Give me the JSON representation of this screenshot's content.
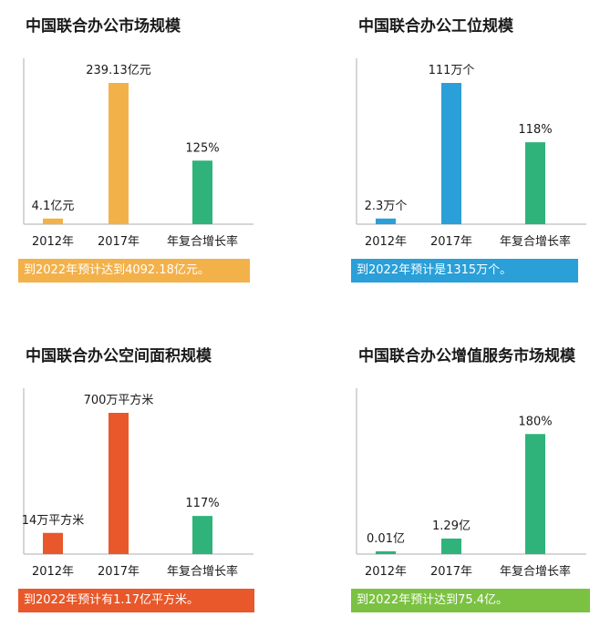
{
  "chart_data": [
    {
      "type": "bar",
      "title": "中国联合办公市场规模",
      "categories": [
        "2012年",
        "2017年",
        "年复合增长率"
      ],
      "values": [
        4.1,
        239.13,
        125
      ],
      "data_labels": [
        "4.1亿元",
        "239.13亿元",
        "125%"
      ],
      "bar_heights_relative": [
        0.04,
        1.0,
        0.45
      ],
      "colors": [
        "#f3b14a",
        "#f3b14a",
        "#2fb37a"
      ],
      "note": "到2022年预计达到4092.18亿元。",
      "note_color": "#f3b14a",
      "grid": false
    },
    {
      "type": "bar",
      "title": "中国联合办公工位规模",
      "categories": [
        "2012年",
        "2017年",
        "年复合增长率"
      ],
      "values": [
        2.3,
        111,
        118
      ],
      "data_labels": [
        "2.3万个",
        "111万个",
        "118%"
      ],
      "bar_heights_relative": [
        0.04,
        1.0,
        0.58
      ],
      "colors": [
        "#2a9fd8",
        "#2a9fd8",
        "#2fb37a"
      ],
      "note": "到2022年预计是1315万个。",
      "note_color": "#2a9fd8",
      "grid": false
    },
    {
      "type": "bar",
      "title": "中国联合办公空间面积规模",
      "categories": [
        "2012年",
        "2017年",
        "年复合增长率"
      ],
      "values": [
        14,
        700,
        117
      ],
      "data_labels": [
        "14万平方米",
        "700万平方米",
        "117%"
      ],
      "bar_heights_relative": [
        0.15,
        1.0,
        0.27
      ],
      "colors": [
        "#e8582a",
        "#e8582a",
        "#2fb37a"
      ],
      "note": "到2022年预计有1.17亿平方米。",
      "note_color": "#e8582a",
      "grid": false
    },
    {
      "type": "bar",
      "title": "中国联合办公增值服务市场规模",
      "categories": [
        "2012年",
        "2017年",
        "年复合增长率"
      ],
      "values": [
        0.01,
        1.29,
        180
      ],
      "data_labels": [
        "0.01亿",
        "1.29亿",
        "180%"
      ],
      "bar_heights_relative": [
        0.02,
        0.11,
        0.85
      ],
      "colors": [
        "#2fb37a",
        "#2fb37a",
        "#2fb37a"
      ],
      "note": "到2022年预计达到75.4亿。",
      "note_color": "#7cc242",
      "grid": false
    }
  ]
}
